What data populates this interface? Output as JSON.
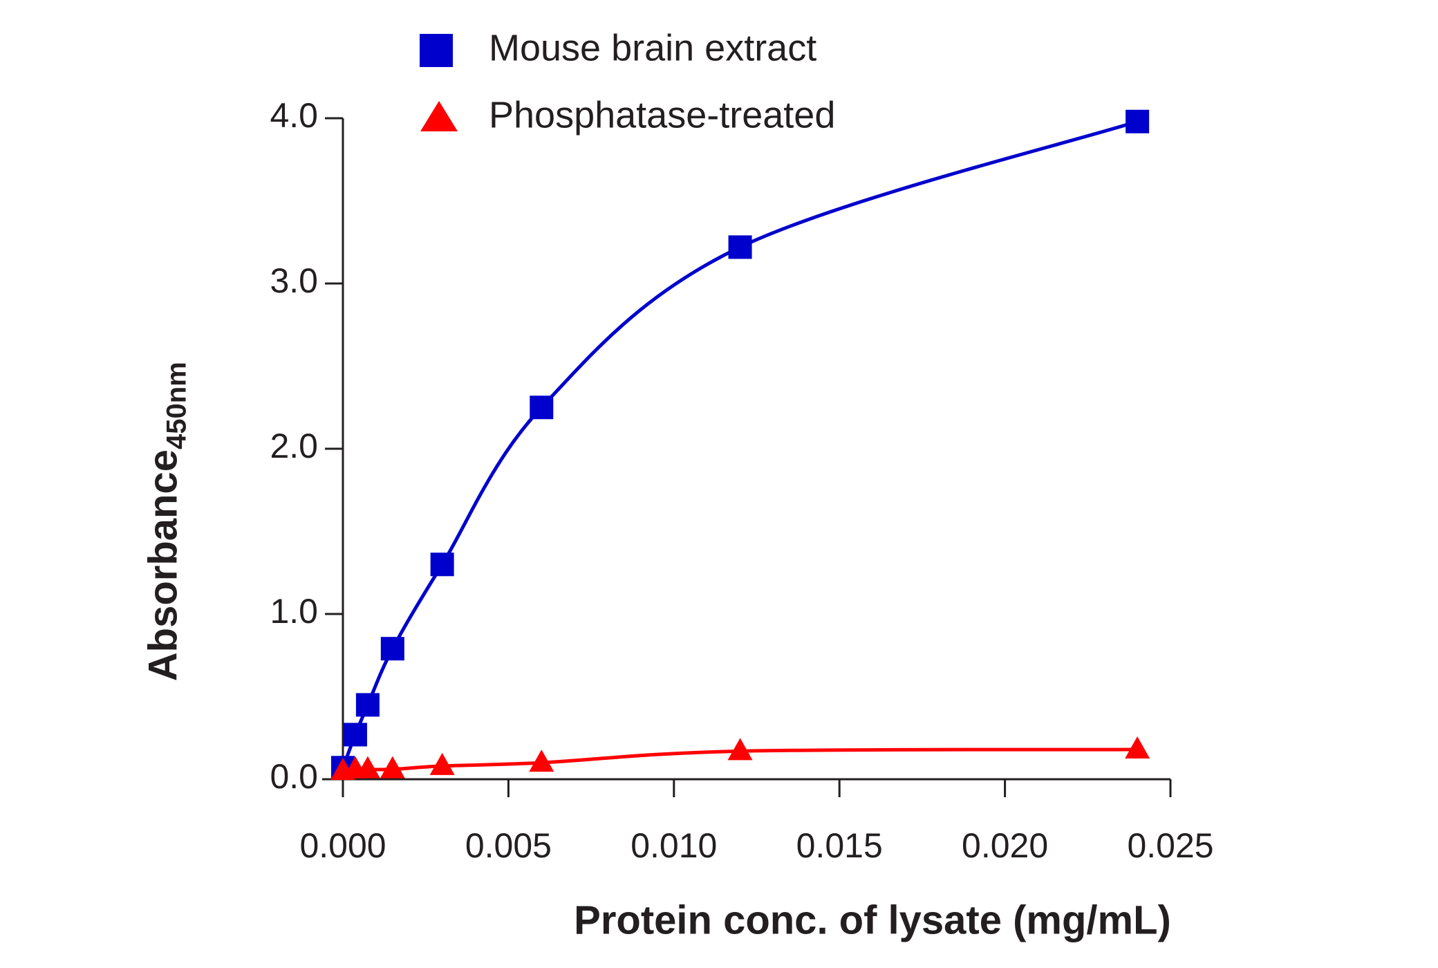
{
  "chart_data": {
    "type": "scatter",
    "x_label": "Protein conc. of lysate (mg/mL)",
    "y_label": "Absorbance",
    "y_label_subscript": "450nm",
    "x": [
      0,
      0.000375,
      0.00075,
      0.0015,
      0.003,
      0.006,
      0.012,
      0.024
    ],
    "series": [
      {
        "name": "Mouse brain extract",
        "color": "#0000cc",
        "marker": "square",
        "values": [
          0.07,
          0.27,
          0.45,
          0.79,
          1.3,
          2.25,
          3.22,
          3.98
        ]
      },
      {
        "name": "Phosphatase-treated",
        "color": "#ff0000",
        "marker": "triangle",
        "values": [
          0.05,
          0.06,
          0.06,
          0.06,
          0.08,
          0.1,
          0.17,
          0.18
        ]
      }
    ],
    "xlim": [
      0,
      0.025
    ],
    "ylim": [
      0,
      4
    ],
    "xticks": [
      {
        "value": 0,
        "label": "0.000"
      },
      {
        "value": 0.005,
        "label": "0.005"
      },
      {
        "value": 0.01,
        "label": "0.010"
      },
      {
        "value": 0.015,
        "label": "0.015"
      },
      {
        "value": 0.02,
        "label": "0.020"
      },
      {
        "value": 0.025,
        "label": "0.025"
      }
    ],
    "yticks": [
      {
        "value": 0,
        "label": "0.0"
      },
      {
        "value": 1,
        "label": "1.0"
      },
      {
        "value": 2,
        "label": "2.0"
      },
      {
        "value": 3,
        "label": "3.0"
      },
      {
        "value": 4,
        "label": "4.0"
      }
    ],
    "grid": false,
    "legend": "top"
  }
}
